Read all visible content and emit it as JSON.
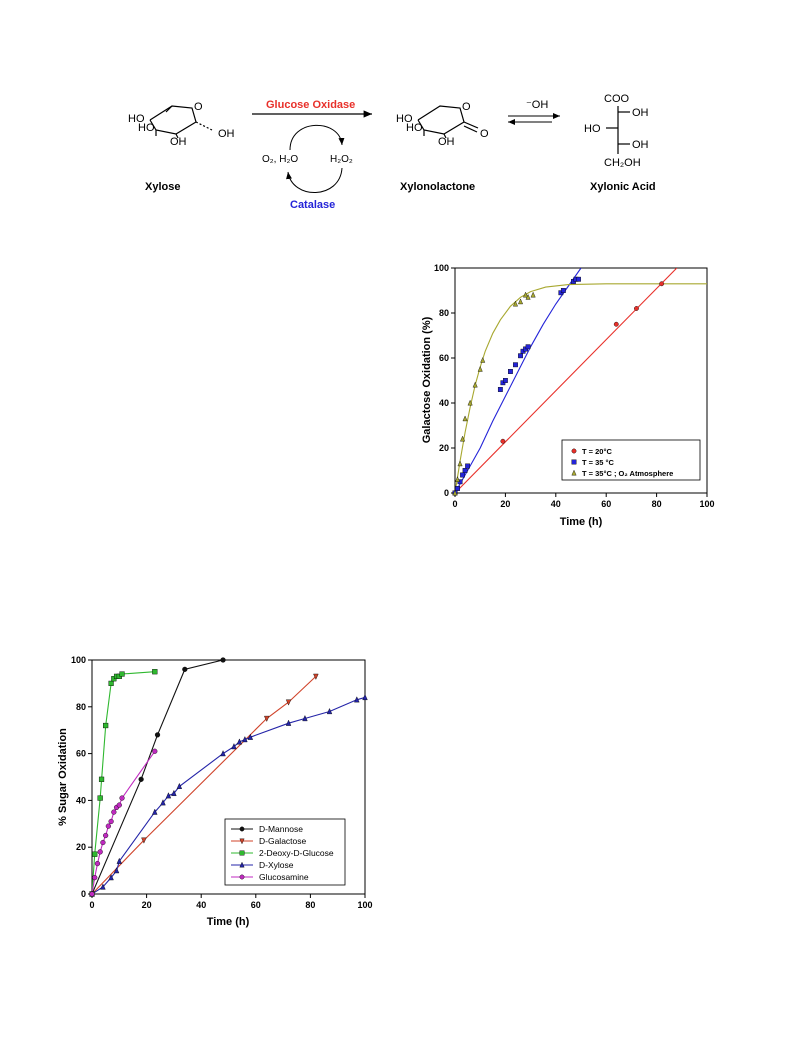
{
  "scheme": {
    "enzyme_top": "Glucose Oxidase",
    "enzyme_bottom": "Catalase",
    "left_cofactor": "O₂, H₂O",
    "right_cofactor": "H₂O₂",
    "base": "⁻OH",
    "xylose_name": "Xylose",
    "lactone_name": "Xylonolactone",
    "acid_name": "Xylonic Acid",
    "labels": {
      "ho": "HO",
      "oh": "OH",
      "o": "O",
      "coo": "COO",
      "ch2oh": "CH₂OH"
    },
    "colors": {
      "enzyme_top": "#e8302a",
      "enzyme_bottom": "#2424d8"
    }
  },
  "chart_data": [
    {
      "type": "scatter",
      "xlabel": "Time (h)",
      "ylabel": "Galactose Oxidation (%)",
      "xlim": [
        0,
        100
      ],
      "ylim": [
        0,
        100
      ],
      "xticks": [
        0,
        20,
        40,
        60,
        80,
        100
      ],
      "yticks": [
        0,
        20,
        40,
        60,
        80,
        100
      ],
      "grid": false,
      "legend_position": "bottom-right",
      "series": [
        {
          "name": "T = 20°C",
          "color": "#e8302a",
          "marker": "circle",
          "points": [
            [
              0,
              0
            ],
            [
              19,
              23
            ],
            [
              64,
              75
            ],
            [
              72,
              82
            ],
            [
              82,
              93
            ]
          ],
          "fit": [
            [
              0,
              0
            ],
            [
              88,
              100
            ]
          ]
        },
        {
          "name": "T = 35 °C",
          "color": "#2424d8",
          "marker": "square",
          "points": [
            [
              0,
              0
            ],
            [
              1,
              2
            ],
            [
              2,
              5
            ],
            [
              3,
              8
            ],
            [
              4,
              10
            ],
            [
              5,
              12
            ],
            [
              18,
              46
            ],
            [
              19,
              49
            ],
            [
              20,
              50
            ],
            [
              22,
              54
            ],
            [
              24,
              57
            ],
            [
              26,
              61
            ],
            [
              27,
              63
            ],
            [
              28,
              64
            ],
            [
              29,
              65
            ],
            [
              42,
              89
            ],
            [
              43,
              90
            ],
            [
              47,
              94
            ],
            [
              48,
              95
            ],
            [
              49,
              95
            ]
          ],
          "fit": [
            [
              0,
              0
            ],
            [
              5,
              10
            ],
            [
              10,
              20
            ],
            [
              15,
              32
            ],
            [
              20,
              43
            ],
            [
              25,
              54
            ],
            [
              30,
              65
            ],
            [
              35,
              75
            ],
            [
              40,
              84
            ],
            [
              45,
              92
            ],
            [
              50,
              100
            ]
          ]
        },
        {
          "name": "T = 35°C ; O₂ Atmosphere",
          "color": "#a8a830",
          "marker": "triangle",
          "points": [
            [
              0,
              0
            ],
            [
              1,
              6
            ],
            [
              2,
              13
            ],
            [
              3,
              24
            ],
            [
              4,
              33
            ],
            [
              6,
              40
            ],
            [
              8,
              48
            ],
            [
              10,
              55
            ],
            [
              11,
              59
            ],
            [
              24,
              84
            ],
            [
              26,
              85
            ],
            [
              28,
              88
            ],
            [
              29,
              87
            ],
            [
              31,
              88
            ]
          ],
          "fit": [
            [
              0,
              0
            ],
            [
              2,
              14
            ],
            [
              4,
              27
            ],
            [
              6,
              38
            ],
            [
              8,
              48
            ],
            [
              10,
              56
            ],
            [
              12,
              63
            ],
            [
              15,
              71
            ],
            [
              18,
              77
            ],
            [
              22,
              83
            ],
            [
              26,
              87
            ],
            [
              30,
              89.5
            ],
            [
              36,
              91.5
            ],
            [
              45,
              92.6
            ],
            [
              60,
              93
            ],
            [
              100,
              93
            ]
          ]
        }
      ]
    },
    {
      "type": "line",
      "xlabel": "Time (h)",
      "ylabel": "% Sugar Oxidation",
      "xlim": [
        0,
        100
      ],
      "ylim": [
        0,
        100
      ],
      "xticks": [
        0,
        20,
        40,
        60,
        80,
        100
      ],
      "yticks": [
        0,
        20,
        40,
        60,
        80,
        100
      ],
      "grid": false,
      "legend_position": "bottom-right",
      "series": [
        {
          "name": "D-Mannose",
          "color": "#111111",
          "marker": "circle",
          "points": [
            [
              0,
              0
            ],
            [
              18,
              49
            ],
            [
              24,
              68
            ],
            [
              34,
              96
            ],
            [
              48,
              100
            ]
          ]
        },
        {
          "name": "D-Galactose",
          "color": "#d0432a",
          "marker": "triangle-down",
          "points": [
            [
              0,
              0
            ],
            [
              19,
              23
            ],
            [
              64,
              75
            ],
            [
              72,
              82
            ],
            [
              82,
              93
            ]
          ]
        },
        {
          "name": "2-Deoxy-D-Glucose",
          "color": "#2fb82f",
          "marker": "square",
          "points": [
            [
              0,
              0
            ],
            [
              1,
              17
            ],
            [
              3,
              41
            ],
            [
              3.5,
              49
            ],
            [
              5,
              72
            ],
            [
              7,
              90
            ],
            [
              8,
              92
            ],
            [
              9,
              93
            ],
            [
              10,
              93
            ],
            [
              11,
              94
            ],
            [
              23,
              95
            ]
          ]
        },
        {
          "name": "D-Xylose",
          "color": "#2424a8",
          "marker": "triangle",
          "points": [
            [
              0,
              0
            ],
            [
              4,
              3
            ],
            [
              7,
              7
            ],
            [
              9,
              10
            ],
            [
              10,
              14
            ],
            [
              23,
              35
            ],
            [
              26,
              39
            ],
            [
              28,
              42
            ],
            [
              30,
              43
            ],
            [
              32,
              46
            ],
            [
              48,
              60
            ],
            [
              52,
              63
            ],
            [
              54,
              65
            ],
            [
              56,
              66
            ],
            [
              58,
              67
            ],
            [
              72,
              73
            ],
            [
              78,
              75
            ],
            [
              87,
              78
            ],
            [
              97,
              83
            ],
            [
              100,
              84
            ]
          ]
        },
        {
          "name": "Glucosamine",
          "color": "#c02ac0",
          "marker": "circle",
          "points": [
            [
              0,
              0
            ],
            [
              1,
              7
            ],
            [
              2,
              13
            ],
            [
              3,
              18
            ],
            [
              4,
              22
            ],
            [
              5,
              25
            ],
            [
              6,
              29
            ],
            [
              7,
              31
            ],
            [
              8,
              35
            ],
            [
              9,
              37
            ],
            [
              10,
              38
            ],
            [
              11,
              41
            ],
            [
              23,
              61
            ]
          ]
        }
      ]
    }
  ]
}
